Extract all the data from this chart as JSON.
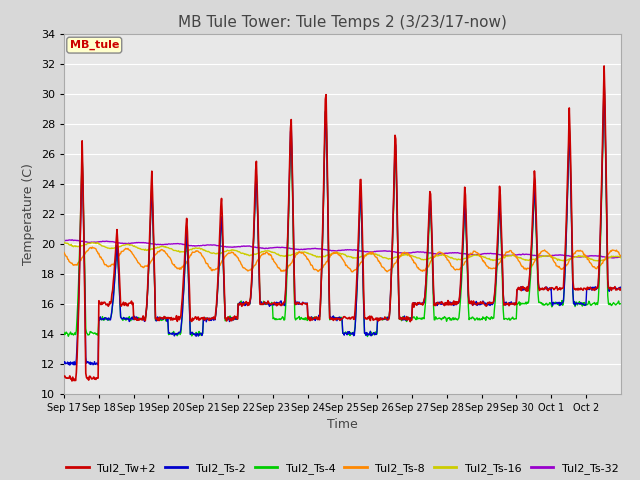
{
  "title": "MB Tule Tower: Tule Temps 2 (3/23/17-now)",
  "xlabel": "Time",
  "ylabel": "Temperature (C)",
  "ylim": [
    10,
    34
  ],
  "yticks": [
    10,
    12,
    14,
    16,
    18,
    20,
    22,
    24,
    26,
    28,
    30,
    32,
    34
  ],
  "xtick_labels": [
    "Sep 17",
    "Sep 18",
    "Sep 19",
    "Sep 20",
    "Sep 21",
    "Sep 22",
    "Sep 23",
    "Sep 24",
    "Sep 25",
    "Sep 26",
    "Sep 27",
    "Sep 28",
    "Sep 29",
    "Sep 30",
    "Oct 1",
    "Oct 2"
  ],
  "legend_label": "MB_tule",
  "series": {
    "Tul2_Tw+2": {
      "color": "#cc0000",
      "lw": 1.2
    },
    "Tul2_Ts-2": {
      "color": "#0000cc",
      "lw": 1.0
    },
    "Tul2_Ts-4": {
      "color": "#00cc00",
      "lw": 1.0
    },
    "Tul2_Ts-8": {
      "color": "#ff8800",
      "lw": 1.0
    },
    "Tul2_Ts-16": {
      "color": "#cccc00",
      "lw": 1.0
    },
    "Tul2_Ts-32": {
      "color": "#9900cc",
      "lw": 1.0
    }
  },
  "bg_color": "#d8d8d8",
  "plot_bg_color": "#e8e8e8",
  "grid_color": "#ffffff"
}
